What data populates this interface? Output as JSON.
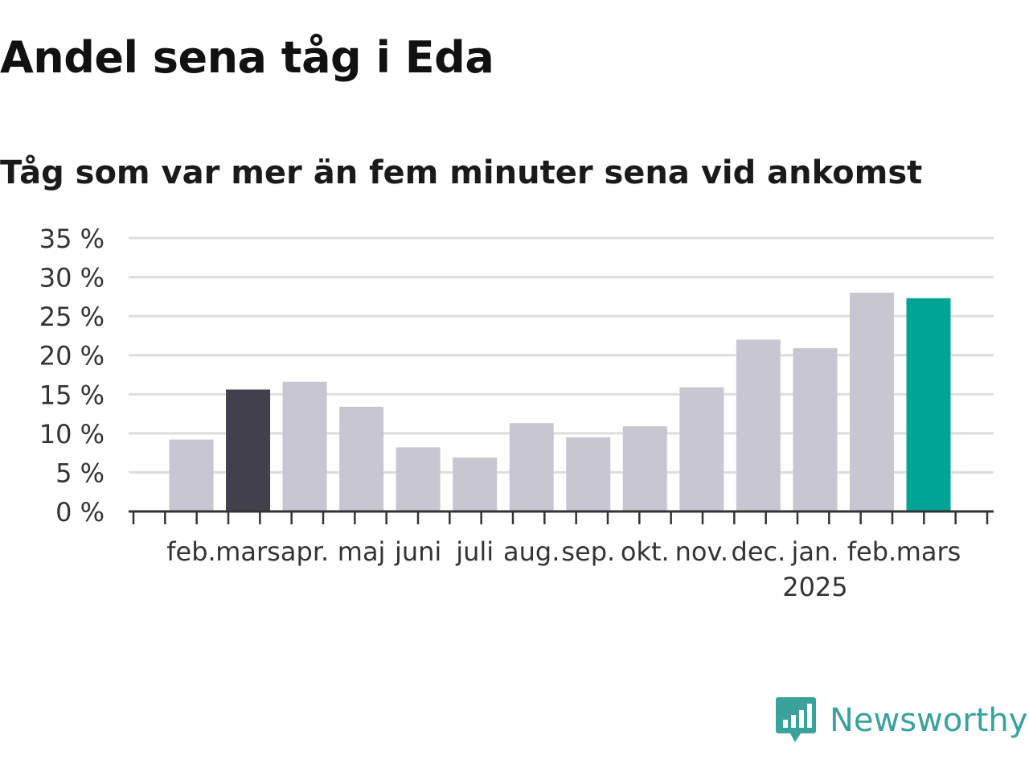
{
  "title": "Andel sena tåg i Eda",
  "subtitle": "Tåg som var mer än fem minuter sena vid ankomst",
  "brand": {
    "name": "Newsworthy",
    "icon": "newsworthy-logo-icon",
    "color": "#3aa19b"
  },
  "chart_data": {
    "type": "bar",
    "categories": [
      "feb.",
      "mars",
      "apr.",
      "maj",
      "juni",
      "juli",
      "aug.",
      "sep.",
      "okt.",
      "nov.",
      "dec.",
      "jan.",
      "feb.",
      "mars"
    ],
    "values": [
      9.2,
      15.6,
      16.6,
      13.4,
      8.2,
      6.9,
      11.3,
      9.5,
      10.9,
      15.9,
      22.0,
      20.9,
      28.0,
      27.3
    ],
    "year_label": "2025",
    "year_label_under_index": 11,
    "yticks": [
      "0 %",
      "5 %",
      "10 %",
      "15 %",
      "20 %",
      "25 %",
      "30 %",
      "35 %"
    ],
    "ytick_values": [
      0,
      5,
      10,
      15,
      20,
      25,
      30,
      35
    ],
    "ylim": [
      0,
      35
    ],
    "grid": true,
    "colors": {
      "default": "#c8c7d1",
      "highlight_previous": "#43404d",
      "highlight_current": "#00a497",
      "grid": "#dddddd",
      "axis": "#333333"
    },
    "highlight": {
      "1": "highlight_previous",
      "13": "highlight_current"
    }
  }
}
